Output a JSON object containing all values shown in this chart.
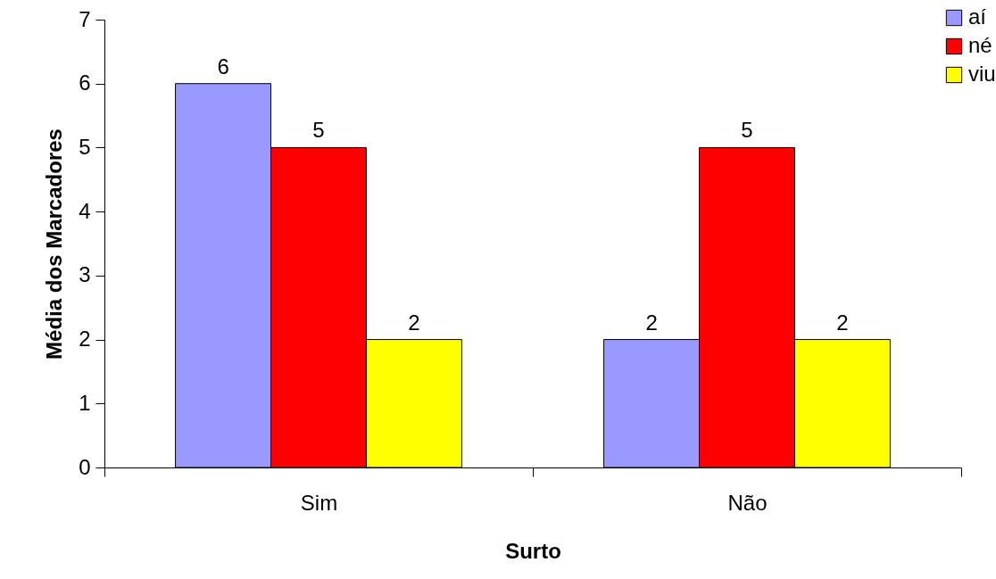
{
  "chart_data": {
    "type": "bar",
    "xlabel": "Surto",
    "ylabel": "Média dos Marcadores",
    "categories": [
      "Sim",
      "Não"
    ],
    "series": [
      {
        "name": "aí",
        "color": "#9999ff",
        "values": [
          6,
          2
        ]
      },
      {
        "name": "né",
        "color": "#ff0000",
        "values": [
          5,
          5
        ]
      },
      {
        "name": "viu",
        "color": "#ffff00",
        "values": [
          2,
          2
        ]
      }
    ],
    "ylim": [
      0,
      7
    ],
    "yticks": [
      0,
      1,
      2,
      3,
      4,
      5,
      6,
      7
    ],
    "data_labels": true,
    "legend": "top right",
    "grid": false
  }
}
